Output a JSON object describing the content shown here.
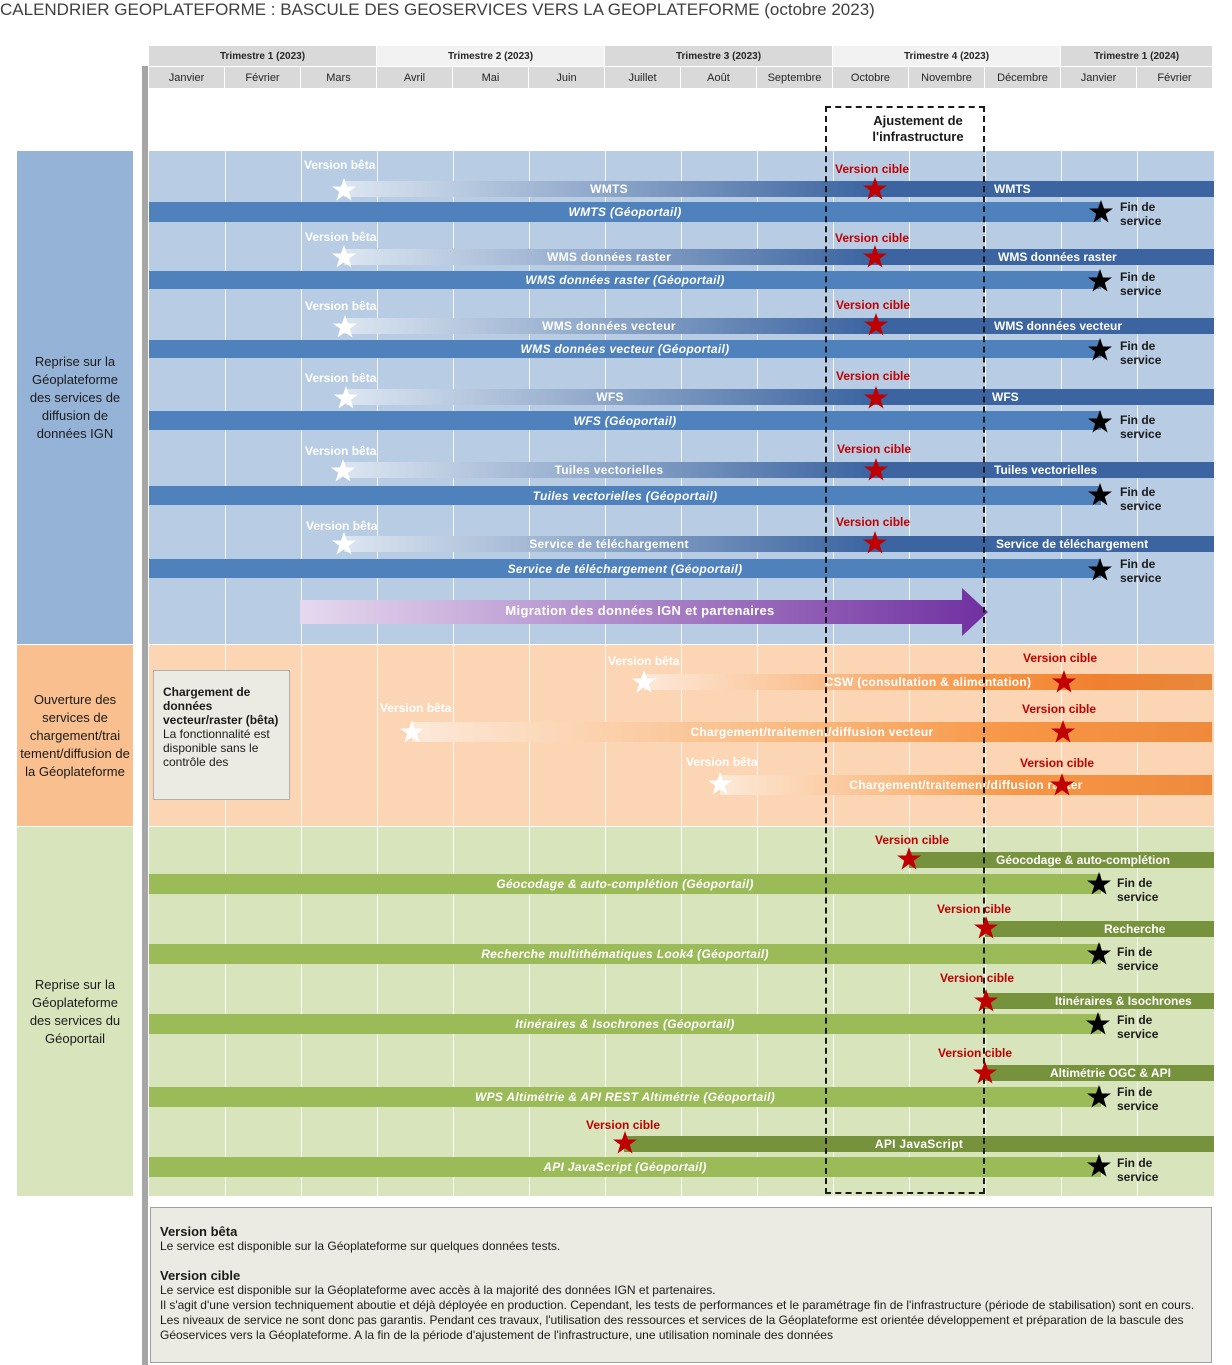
{
  "title": "CALENDRIER GEOPLATEFORME : BASCULE DES GEOSERVICES VERS LA GEOPLATEFORME (octobre 2023)",
  "quarters": [
    "Trimestre 1 (2023)",
    "Trimestre 2 (2023)",
    "Trimestre 3 (2023)",
    "Trimestre 4 (2023)",
    "Trimestre 1 (2024)"
  ],
  "months": [
    "Janvier",
    "Février",
    "Mars",
    "Avril",
    "Mai",
    "Juin",
    "Juillet",
    "Août",
    "Septembre",
    "Octobre",
    "Novembre",
    "Décembre",
    "Janvier",
    "Février"
  ],
  "adjustment_label": "Ajustement de l'infrastructure",
  "sections": [
    "Reprise sur la Géoplateforme des services de diffusion de données IGN",
    "Ouverture des services de chargement/trai tement/diffusion de la Géoplateforme",
    "Reprise sur la Géoplateforme des services du Géoportail"
  ],
  "labels": {
    "beta": "Version bêta",
    "cible": "Version cible",
    "fin1": "Fin de",
    "fin2": "service"
  },
  "services": {
    "wmts": "WMTS",
    "wmts_gp": "WMTS (Géoportail)",
    "wms_raster": "WMS données raster",
    "wms_raster_gp": "WMS données raster (Géoportail)",
    "wms_vecteur": "WMS données vecteur",
    "wms_vecteur_gp": "WMS données vecteur (Géoportail)",
    "wfs": "WFS",
    "wfs_gp": "WFS (Géoportail)",
    "tuiles": "Tuiles vectorielles",
    "tuiles_gp": "Tuiles vectorielles (Géoportail)",
    "telechargement": "Service de téléchargement",
    "telechargement_gp": "Service de téléchargement (Géoportail)",
    "migration": "Migration des données IGN et partenaires",
    "csw": "CSW (consultation & alimentation)",
    "chg_vecteur": "Chargement/traitement/diffusion vecteur",
    "chg_raster": "Chargement/traitement/diffusion raster",
    "geocodage": "Géocodage & auto-complétion",
    "geocodage_gp": "Géocodage & auto-complétion (Géoportail)",
    "recherche": "Recherche",
    "recherche_gp": "Recherche multithématiques Look4 (Géoportail)",
    "itineraires": "Itinéraires & Isochrones",
    "itineraires_gp": "Itinéraires & Isochrones (Géoportail)",
    "altimetrie": "Altimétrie OGC & API",
    "altimetrie_gp": "WPS Altimétrie & API REST Altimétrie (Géoportail)",
    "apijs": "API JavaScript",
    "apijs_gp": "API JavaScript (Géoportail)"
  },
  "note": {
    "title": "Chargement de données vecteur/raster (bêta)",
    "text": "La fonctionnalité est disponible sans le contrôle des"
  },
  "legend": {
    "beta_title": "Version bêta",
    "beta_text": "Le service est disponible sur la Géoplateforme sur quelques données tests.",
    "cible_title": "Version cible",
    "cible_text1": "Le service est disponible sur la Géoplateforme avec accès à la majorité des données IGN et partenaires.",
    "cible_text2": "Il s'agit d'une version techniquement aboutie et déjà déployée en production. Cependant, les tests de performances et le paramétrage fin de l'infrastructure (période de stabilisation) sont en cours. Les niveaux de service ne sont donc pas garantis. Pendant ces travaux, l'utilisation des ressources et services de la Géoplateforme est orientée développement et préparation de la bascule des Géoservices vers la Géoplateforme. A la fin de la période d'ajustement de l'infrastructure, une utilisation nominale des données"
  },
  "colors": {
    "blue_band": "#b8cce4",
    "orange_band": "#fcd5b4",
    "green_band": "#d8e4bc",
    "blue_section": "#95b3d7",
    "orange_section": "#fabf8f",
    "green_section": "#d8e4bc",
    "blue_bar": "#4f81bd",
    "orange_bar": "#f79646",
    "green_bar": "#9bbb59",
    "green_dark": "#76923c",
    "purple": "#7030a0",
    "star_cible": "#c00000"
  }
}
